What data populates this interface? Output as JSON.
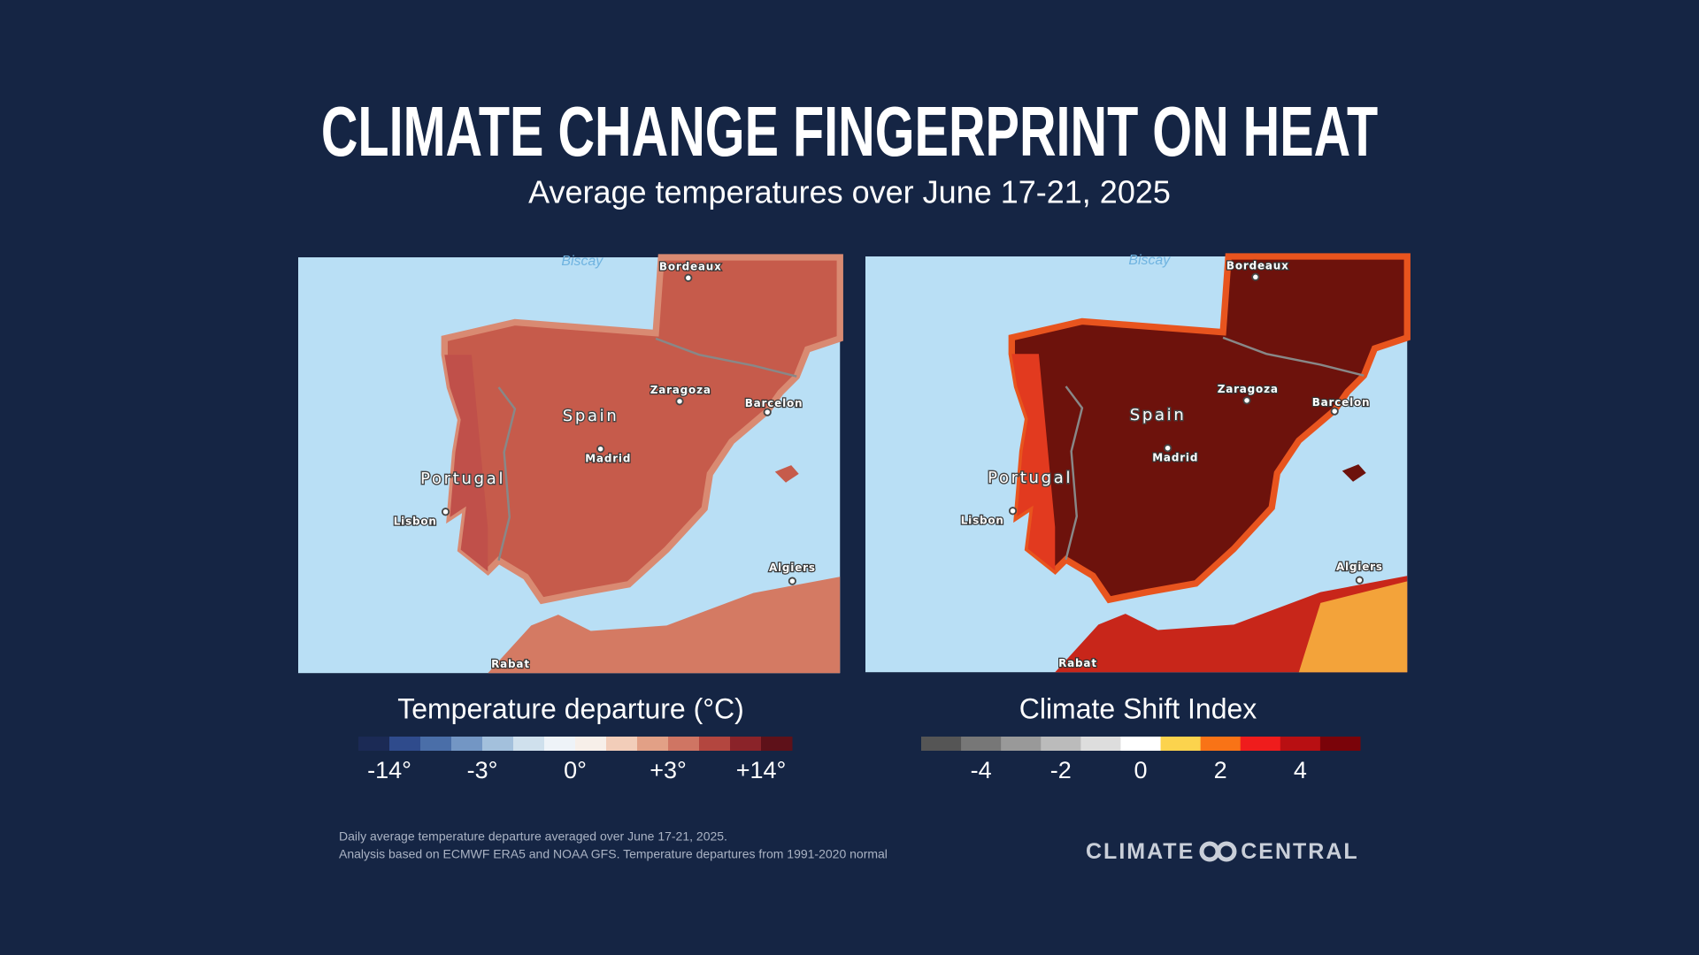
{
  "header": {
    "title": "CLIMATE CHANGE FINGERPRINT ON HEAT",
    "subtitle": "Average temperatures over June 17-21, 2025"
  },
  "map_labels": {
    "sea": "Biscay",
    "cities": [
      "Bordeaux",
      "Zaragoza",
      "Barcelon",
      "Madrid",
      "Lisbon",
      "Algiers",
      "Rabat"
    ],
    "countries": [
      "Spain",
      "Portugal"
    ]
  },
  "legends": [
    {
      "title": "Temperature departure (°C)",
      "colors": [
        "#1b2a55",
        "#2f4b8c",
        "#4a6ea8",
        "#7396c4",
        "#a3c0dc",
        "#cfe0ed",
        "#eef3f8",
        "#f7efe9",
        "#f2cdb9",
        "#e2a086",
        "#cf7563",
        "#b3463f",
        "#8a2329",
        "#5e1119"
      ],
      "labels": [
        "-14°",
        "-3°",
        "0°",
        "+3°",
        "+14°"
      ]
    },
    {
      "title": "Climate Shift Index",
      "colors": [
        "#555555",
        "#777777",
        "#999999",
        "#bbbbbb",
        "#dddddd",
        "#ffffff",
        "#fcd34d",
        "#f97316",
        "#ef1c1c",
        "#b80f12",
        "#7a0309"
      ],
      "labels": [
        "-4",
        "-2",
        "0",
        "2",
        "4"
      ]
    }
  ],
  "footer": {
    "notes": [
      "Daily average temperature departure averaged over June 17-21, 2025.",
      "Analysis based on ECMWF ERA5 and NOAA GFS. Temperature departures from 1991-2020 normal"
    ],
    "logo": "CLIMATE CENTRAL"
  }
}
